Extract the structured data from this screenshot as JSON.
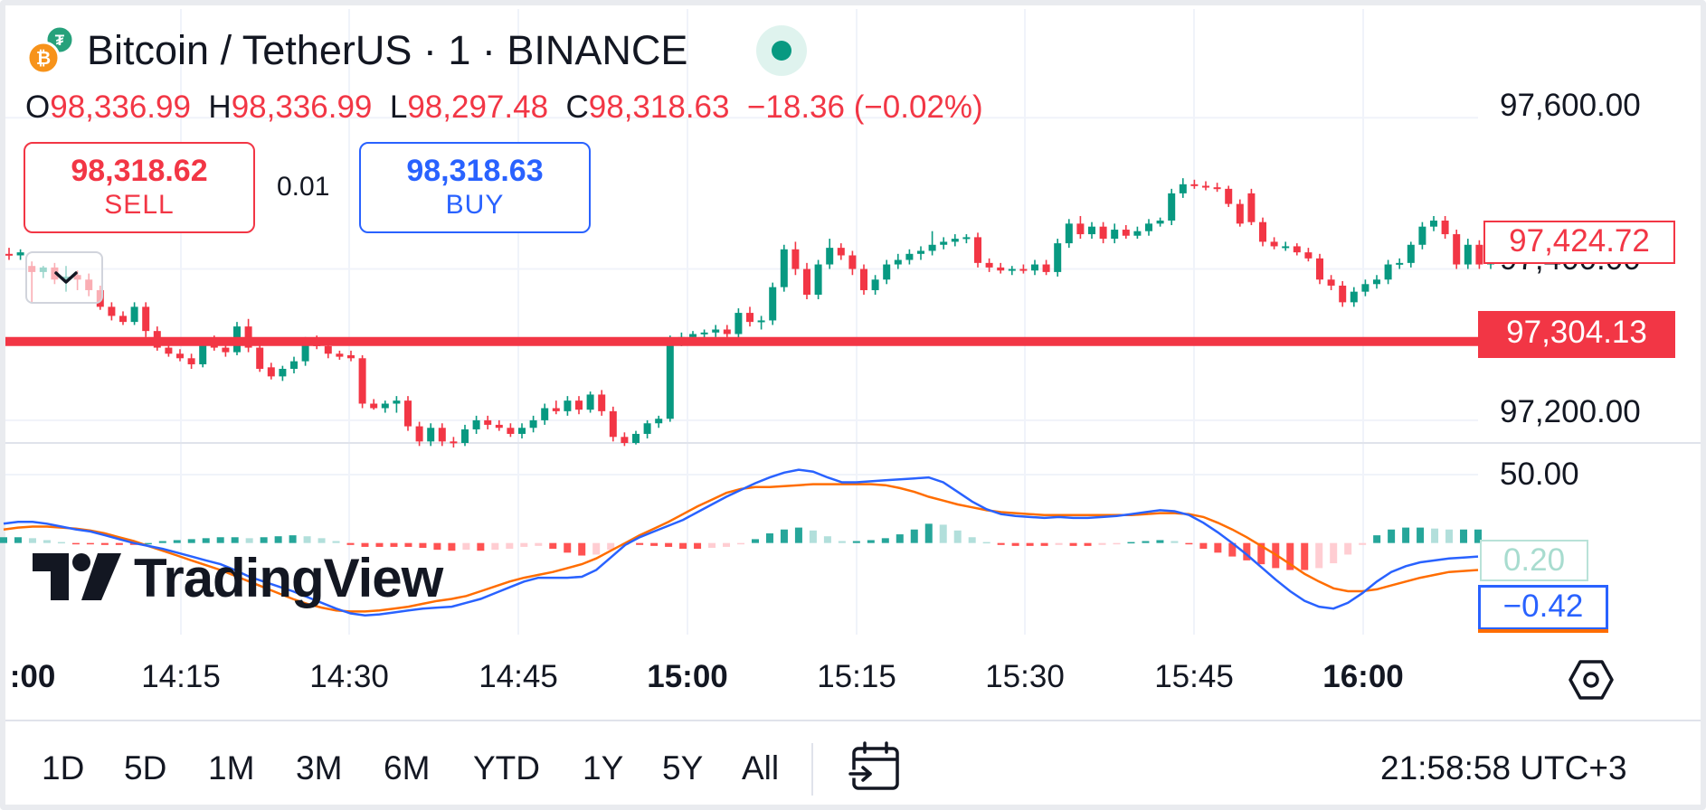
{
  "header": {
    "title": "Bitcoin / TetherUS · 1 · BINANCE",
    "ohlc": {
      "o_label": "O",
      "o_value": "98,336.99",
      "h_label": "H",
      "h_value": "98,336.99",
      "l_label": "L",
      "l_value": "98,297.48",
      "c_label": "C",
      "c_value": "98,318.63",
      "change": "−18.36 (−0.02%)"
    }
  },
  "trade": {
    "sell_price": "98,318.62",
    "sell_label": "SELL",
    "spread": "0.01",
    "buy_price": "98,318.63",
    "buy_label": "BUY"
  },
  "price_axis": {
    "labels": [
      {
        "text": "97,600.00",
        "value": 97600
      },
      {
        "text": "97,400.00",
        "value": 97400
      },
      {
        "text": "97,200.00",
        "value": 97200
      }
    ],
    "ask_tag": "97,424.72",
    "line_tag": "97,304.13"
  },
  "macd_axis": {
    "label": "50.00",
    "macd_tag": "0.20",
    "signal_tag": "−0.42"
  },
  "time_axis": [
    {
      "text": ":00",
      "bold": true
    },
    {
      "text": "14:15",
      "bold": false
    },
    {
      "text": "14:30",
      "bold": false
    },
    {
      "text": "14:45",
      "bold": false
    },
    {
      "text": "15:00",
      "bold": true
    },
    {
      "text": "15:15",
      "bold": false
    },
    {
      "text": "15:30",
      "bold": false
    },
    {
      "text": "15:45",
      "bold": false
    },
    {
      "text": "16:00",
      "bold": true
    }
  ],
  "ranges": [
    "1D",
    "5D",
    "1M",
    "3M",
    "6M",
    "YTD",
    "1Y",
    "5Y",
    "All"
  ],
  "clock": "21:58:58 UTC+3",
  "watermark": "TradingView",
  "colors": {
    "up": "#089981",
    "down": "#f23645",
    "macd_line": "#2962ff",
    "signal_line": "#ff6d00",
    "hist_up_strong": "#26a69a",
    "hist_up_weak": "#b2dfdb",
    "hist_down_strong": "#ff5252",
    "hist_down_weak": "#ffcdd2"
  },
  "icons": {
    "symbol": "bitcoin-tether-icon",
    "settings": "settings-hexagon-icon",
    "date_range": "calendar-goto-icon",
    "collapse": "chevron-down-icon"
  },
  "chart_data": {
    "type": "candlestick",
    "price_range": [
      97170,
      97660
    ],
    "horizontal_line": 97304.13,
    "candles": [
      {
        "o": 97420,
        "h": 97428,
        "l": 97412,
        "c": 97418
      },
      {
        "o": 97418,
        "h": 97426,
        "l": 97412,
        "c": 97422
      },
      {
        "o": 97404,
        "h": 97410,
        "l": 97356,
        "c": 97396
      },
      {
        "o": 97396,
        "h": 97404,
        "l": 97388,
        "c": 97402
      },
      {
        "o": 97402,
        "h": 97408,
        "l": 97380,
        "c": 97386
      },
      {
        "o": 97386,
        "h": 97404,
        "l": 97370,
        "c": 97390
      },
      {
        "o": 97392,
        "h": 97398,
        "l": 97372,
        "c": 97386
      },
      {
        "o": 97386,
        "h": 97394,
        "l": 97364,
        "c": 97372
      },
      {
        "o": 97372,
        "h": 97378,
        "l": 97346,
        "c": 97350
      },
      {
        "o": 97350,
        "h": 97356,
        "l": 97332,
        "c": 97338
      },
      {
        "o": 97338,
        "h": 97344,
        "l": 97326,
        "c": 97330
      },
      {
        "o": 97330,
        "h": 97356,
        "l": 97326,
        "c": 97350
      },
      {
        "o": 97350,
        "h": 97356,
        "l": 97310,
        "c": 97318
      },
      {
        "o": 97318,
        "h": 97324,
        "l": 97292,
        "c": 97296
      },
      {
        "o": 97296,
        "h": 97302,
        "l": 97284,
        "c": 97288
      },
      {
        "o": 97288,
        "h": 97294,
        "l": 97278,
        "c": 97282
      },
      {
        "o": 97282,
        "h": 97288,
        "l": 97268,
        "c": 97274
      },
      {
        "o": 97274,
        "h": 97304,
        "l": 97270,
        "c": 97300
      },
      {
        "o": 97300,
        "h": 97312,
        "l": 97292,
        "c": 97296
      },
      {
        "o": 97296,
        "h": 97300,
        "l": 97284,
        "c": 97290
      },
      {
        "o": 97290,
        "h": 97330,
        "l": 97286,
        "c": 97324
      },
      {
        "o": 97324,
        "h": 97334,
        "l": 97290,
        "c": 97296
      },
      {
        "o": 97296,
        "h": 97300,
        "l": 97264,
        "c": 97268
      },
      {
        "o": 97270,
        "h": 97276,
        "l": 97254,
        "c": 97258
      },
      {
        "o": 97258,
        "h": 97272,
        "l": 97252,
        "c": 97268
      },
      {
        "o": 97268,
        "h": 97284,
        "l": 97262,
        "c": 97278
      },
      {
        "o": 97278,
        "h": 97310,
        "l": 97272,
        "c": 97304
      },
      {
        "o": 97304,
        "h": 97312,
        "l": 97294,
        "c": 97298
      },
      {
        "o": 97298,
        "h": 97304,
        "l": 97282,
        "c": 97288
      },
      {
        "o": 97288,
        "h": 97292,
        "l": 97280,
        "c": 97284
      },
      {
        "o": 97286,
        "h": 97292,
        "l": 97278,
        "c": 97282
      },
      {
        "o": 97282,
        "h": 97286,
        "l": 97216,
        "c": 97222
      },
      {
        "o": 97222,
        "h": 97228,
        "l": 97214,
        "c": 97216
      },
      {
        "o": 97216,
        "h": 97226,
        "l": 97210,
        "c": 97222
      },
      {
        "o": 97222,
        "h": 97232,
        "l": 97210,
        "c": 97226
      },
      {
        "o": 97226,
        "h": 97232,
        "l": 97186,
        "c": 97192
      },
      {
        "o": 97192,
        "h": 97198,
        "l": 97166,
        "c": 97172
      },
      {
        "o": 97172,
        "h": 97196,
        "l": 97166,
        "c": 97190
      },
      {
        "o": 97190,
        "h": 97196,
        "l": 97166,
        "c": 97172
      },
      {
        "o": 97172,
        "h": 97178,
        "l": 97164,
        "c": 97170
      },
      {
        "o": 97170,
        "h": 97194,
        "l": 97166,
        "c": 97188
      },
      {
        "o": 97188,
        "h": 97206,
        "l": 97182,
        "c": 97200
      },
      {
        "o": 97200,
        "h": 97206,
        "l": 97188,
        "c": 97194
      },
      {
        "o": 97194,
        "h": 97200,
        "l": 97186,
        "c": 97190
      },
      {
        "o": 97190,
        "h": 97196,
        "l": 97178,
        "c": 97182
      },
      {
        "o": 97182,
        "h": 97196,
        "l": 97176,
        "c": 97190
      },
      {
        "o": 97190,
        "h": 97206,
        "l": 97184,
        "c": 97200
      },
      {
        "o": 97200,
        "h": 97222,
        "l": 97194,
        "c": 97216
      },
      {
        "o": 97216,
        "h": 97226,
        "l": 97208,
        "c": 97212
      },
      {
        "o": 97212,
        "h": 97232,
        "l": 97206,
        "c": 97226
      },
      {
        "o": 97226,
        "h": 97232,
        "l": 97208,
        "c": 97214
      },
      {
        "o": 97214,
        "h": 97238,
        "l": 97210,
        "c": 97234
      },
      {
        "o": 97234,
        "h": 97240,
        "l": 97206,
        "c": 97212
      },
      {
        "o": 97212,
        "h": 97218,
        "l": 97172,
        "c": 97178
      },
      {
        "o": 97178,
        "h": 97184,
        "l": 97166,
        "c": 97170
      },
      {
        "o": 97170,
        "h": 97186,
        "l": 97168,
        "c": 97182
      },
      {
        "o": 97182,
        "h": 97200,
        "l": 97176,
        "c": 97196
      },
      {
        "o": 97196,
        "h": 97206,
        "l": 97190,
        "c": 97202
      },
      {
        "o": 97202,
        "h": 97312,
        "l": 97198,
        "c": 97306
      },
      {
        "o": 97306,
        "h": 97316,
        "l": 97298,
        "c": 97310
      },
      {
        "o": 97310,
        "h": 97318,
        "l": 97306,
        "c": 97314
      },
      {
        "o": 97314,
        "h": 97320,
        "l": 97308,
        "c": 97316
      },
      {
        "o": 97316,
        "h": 97326,
        "l": 97310,
        "c": 97320
      },
      {
        "o": 97320,
        "h": 97326,
        "l": 97310,
        "c": 97314
      },
      {
        "o": 97314,
        "h": 97348,
        "l": 97308,
        "c": 97342
      },
      {
        "o": 97342,
        "h": 97350,
        "l": 97324,
        "c": 97330
      },
      {
        "o": 97330,
        "h": 97338,
        "l": 97320,
        "c": 97332
      },
      {
        "o": 97332,
        "h": 97382,
        "l": 97326,
        "c": 97376
      },
      {
        "o": 97376,
        "h": 97432,
        "l": 97370,
        "c": 97426
      },
      {
        "o": 97426,
        "h": 97436,
        "l": 97392,
        "c": 97400
      },
      {
        "o": 97400,
        "h": 97408,
        "l": 97360,
        "c": 97366
      },
      {
        "o": 97366,
        "h": 97412,
        "l": 97360,
        "c": 97406
      },
      {
        "o": 97406,
        "h": 97440,
        "l": 97400,
        "c": 97428
      },
      {
        "o": 97428,
        "h": 97434,
        "l": 97412,
        "c": 97418
      },
      {
        "o": 97418,
        "h": 97424,
        "l": 97392,
        "c": 97400
      },
      {
        "o": 97400,
        "h": 97406,
        "l": 97366,
        "c": 97372
      },
      {
        "o": 97372,
        "h": 97392,
        "l": 97366,
        "c": 97386
      },
      {
        "o": 97386,
        "h": 97412,
        "l": 97380,
        "c": 97406
      },
      {
        "o": 97406,
        "h": 97420,
        "l": 97400,
        "c": 97412
      },
      {
        "o": 97412,
        "h": 97426,
        "l": 97406,
        "c": 97420
      },
      {
        "o": 97420,
        "h": 97430,
        "l": 97412,
        "c": 97424
      },
      {
        "o": 97424,
        "h": 97450,
        "l": 97418,
        "c": 97432
      },
      {
        "o": 97432,
        "h": 97442,
        "l": 97426,
        "c": 97436
      },
      {
        "o": 97436,
        "h": 97446,
        "l": 97430,
        "c": 97440
      },
      {
        "o": 97440,
        "h": 97446,
        "l": 97434,
        "c": 97442
      },
      {
        "o": 97442,
        "h": 97448,
        "l": 97402,
        "c": 97408
      },
      {
        "o": 97408,
        "h": 97414,
        "l": 97396,
        "c": 97402
      },
      {
        "o": 97402,
        "h": 97408,
        "l": 97394,
        "c": 97398
      },
      {
        "o": 97398,
        "h": 97404,
        "l": 97392,
        "c": 97400
      },
      {
        "o": 97400,
        "h": 97406,
        "l": 97394,
        "c": 97398
      },
      {
        "o": 97398,
        "h": 97412,
        "l": 97392,
        "c": 97406
      },
      {
        "o": 97406,
        "h": 97412,
        "l": 97392,
        "c": 97396
      },
      {
        "o": 97396,
        "h": 97440,
        "l": 97390,
        "c": 97434
      },
      {
        "o": 97434,
        "h": 97466,
        "l": 97428,
        "c": 97460
      },
      {
        "o": 97460,
        "h": 97470,
        "l": 97440,
        "c": 97446
      },
      {
        "o": 97446,
        "h": 97462,
        "l": 97440,
        "c": 97456
      },
      {
        "o": 97456,
        "h": 97462,
        "l": 97434,
        "c": 97440
      },
      {
        "o": 97440,
        "h": 97460,
        "l": 97434,
        "c": 97452
      },
      {
        "o": 97452,
        "h": 97458,
        "l": 97440,
        "c": 97444
      },
      {
        "o": 97444,
        "h": 97456,
        "l": 97440,
        "c": 97450
      },
      {
        "o": 97450,
        "h": 97466,
        "l": 97444,
        "c": 97460
      },
      {
        "o": 97460,
        "h": 97468,
        "l": 97456,
        "c": 97464
      },
      {
        "o": 97464,
        "h": 97506,
        "l": 97458,
        "c": 97500
      },
      {
        "o": 97500,
        "h": 97520,
        "l": 97494,
        "c": 97512
      },
      {
        "o": 97512,
        "h": 97518,
        "l": 97506,
        "c": 97510
      },
      {
        "o": 97510,
        "h": 97516,
        "l": 97504,
        "c": 97508
      },
      {
        "o": 97508,
        "h": 97514,
        "l": 97502,
        "c": 97506
      },
      {
        "o": 97506,
        "h": 97510,
        "l": 97482,
        "c": 97486
      },
      {
        "o": 97486,
        "h": 97492,
        "l": 97456,
        "c": 97460
      },
      {
        "o": 97500,
        "h": 97506,
        "l": 97458,
        "c": 97462
      },
      {
        "o": 97462,
        "h": 97468,
        "l": 97430,
        "c": 97436
      },
      {
        "o": 97436,
        "h": 97442,
        "l": 97426,
        "c": 97430
      },
      {
        "o": 97430,
        "h": 97436,
        "l": 97424,
        "c": 97430
      },
      {
        "o": 97430,
        "h": 97434,
        "l": 97418,
        "c": 97422
      },
      {
        "o": 97422,
        "h": 97428,
        "l": 97410,
        "c": 97414
      },
      {
        "o": 97414,
        "h": 97420,
        "l": 97380,
        "c": 97386
      },
      {
        "o": 97386,
        "h": 97392,
        "l": 97372,
        "c": 97378
      },
      {
        "o": 97378,
        "h": 97384,
        "l": 97350,
        "c": 97356
      },
      {
        "o": 97356,
        "h": 97376,
        "l": 97350,
        "c": 97370
      },
      {
        "o": 97370,
        "h": 97386,
        "l": 97364,
        "c": 97380
      },
      {
        "o": 97380,
        "h": 97392,
        "l": 97374,
        "c": 97386
      },
      {
        "o": 97386,
        "h": 97412,
        "l": 97380,
        "c": 97406
      },
      {
        "o": 97406,
        "h": 97414,
        "l": 97400,
        "c": 97408
      },
      {
        "o": 97408,
        "h": 97436,
        "l": 97402,
        "c": 97432
      },
      {
        "o": 97432,
        "h": 97462,
        "l": 97426,
        "c": 97456
      },
      {
        "o": 97456,
        "h": 97470,
        "l": 97450,
        "c": 97464
      },
      {
        "o": 97464,
        "h": 97470,
        "l": 97440,
        "c": 97446
      },
      {
        "o": 97446,
        "h": 97452,
        "l": 97400,
        "c": 97406
      },
      {
        "o": 97406,
        "h": 97440,
        "l": 97400,
        "c": 97432
      },
      {
        "o": 97432,
        "h": 97438,
        "l": 97400,
        "c": 97406
      },
      {
        "o": 97406,
        "h": 97440,
        "l": 97400,
        "c": 97434
      },
      {
        "o": 97434,
        "h": 97460,
        "l": 97418,
        "c": 97424
      },
      {
        "o": 97424,
        "h": 97450,
        "l": 97418,
        "c": 97440
      },
      {
        "o": 97440,
        "h": 97446,
        "l": 97412,
        "c": 97420
      }
    ],
    "macd": {
      "range": [
        -95,
        85
      ],
      "macd_line": [
        20,
        22,
        22,
        20,
        17,
        14,
        12,
        8,
        4,
        0,
        -3,
        -6,
        -10,
        -14,
        -18,
        -22,
        -28,
        -35,
        -40,
        -45,
        -50,
        -56,
        -62,
        -68,
        -73,
        -75,
        -74,
        -72,
        -70,
        -68,
        -67,
        -66,
        -62,
        -58,
        -52,
        -46,
        -40,
        -36,
        -36,
        -36,
        -35,
        -28,
        -15,
        -2,
        6,
        12,
        18,
        24,
        32,
        40,
        48,
        55,
        62,
        68,
        73,
        76,
        74,
        68,
        63,
        63,
        64,
        65,
        66,
        67,
        68,
        63,
        53,
        43,
        35,
        30,
        28,
        27,
        26,
        27,
        26,
        26,
        27,
        28,
        30,
        32,
        34,
        33,
        29,
        21,
        11,
        0,
        -12,
        -25,
        -38,
        -50,
        -60,
        -66,
        -68,
        -62,
        -52,
        -40,
        -30,
        -24,
        -20,
        -18,
        -16,
        -15,
        -14
      ],
      "signal_line": [
        14,
        16,
        17,
        17,
        16,
        15,
        13,
        10,
        6,
        2,
        -3,
        -8,
        -13,
        -18,
        -23,
        -28,
        -34,
        -40,
        -46,
        -52,
        -58,
        -63,
        -67,
        -70,
        -71,
        -71,
        -70,
        -68,
        -66,
        -63,
        -60,
        -58,
        -55,
        -50,
        -45,
        -40,
        -36,
        -33,
        -30,
        -26,
        -22,
        -16,
        -8,
        0,
        8,
        15,
        22,
        30,
        38,
        45,
        52,
        56,
        58,
        58,
        59,
        60,
        61,
        61,
        61,
        61,
        61,
        60,
        57,
        53,
        48,
        44,
        40,
        37,
        34,
        32,
        31,
        30,
        29,
        29,
        29,
        29,
        29,
        29,
        29,
        30,
        31,
        31,
        30,
        27,
        21,
        14,
        6,
        -3,
        -12,
        -22,
        -32,
        -40,
        -47,
        -50,
        -50,
        -48,
        -44,
        -40,
        -36,
        -33,
        -30,
        -29,
        -28
      ],
      "histogram": [
        6,
        6,
        5,
        3,
        1,
        -1,
        -1,
        -2,
        -2,
        -2,
        0,
        2,
        3,
        4,
        5,
        6,
        6,
        5,
        6,
        7,
        8,
        7,
        5,
        2,
        -2,
        -4,
        -4,
        -4,
        -4,
        -5,
        -7,
        -8,
        -7,
        -8,
        -7,
        -6,
        -4,
        -3,
        -6,
        -10,
        -13,
        -12,
        -7,
        -2,
        -2,
        -3,
        -4,
        -6,
        -6,
        -5,
        -4,
        -1,
        4,
        10,
        14,
        16,
        13,
        7,
        2,
        2,
        3,
        5,
        9,
        14,
        20,
        19,
        13,
        6,
        1,
        -2,
        -3,
        -3,
        -3,
        -2,
        -3,
        -3,
        -2,
        -1,
        1,
        2,
        3,
        2,
        -1,
        -6,
        -10,
        -14,
        -18,
        -22,
        -26,
        -28,
        -28,
        -26,
        -21,
        -12,
        -2,
        8,
        14,
        16,
        16,
        15,
        14,
        14,
        14
      ]
    }
  }
}
